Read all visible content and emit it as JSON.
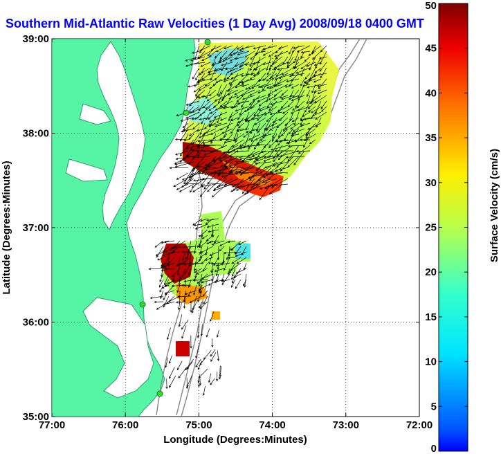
{
  "map": {
    "title": "Southern Mid-Atlantic Raw Velocities (1 Day Avg) 2008/09/18 0400 GMT",
    "xlabel": "Longitude (Degrees:Minutes)",
    "ylabel": "Latitude (Degrees:Minutes)",
    "x_ticks": [
      "77:00",
      "76:00",
      "75:00",
      "74:00",
      "73:00",
      "72:00"
    ],
    "y_ticks": [
      "39:00",
      "38:00",
      "37:00",
      "36:00",
      "35:00"
    ],
    "x_range_deg": [
      -77,
      -72
    ],
    "y_range_deg": [
      35,
      39
    ],
    "grid": "dotted",
    "land_color": "#55f5a5",
    "bathymetry_color": "#8c8c8c",
    "vector_color": "#000000",
    "station_color": "#33dd33"
  },
  "colorbar": {
    "label": "Surface Velocity (cm/s)",
    "ticks": [
      "0",
      "5",
      "10",
      "15",
      "20",
      "25",
      "30",
      "35",
      "40",
      "45",
      "50"
    ],
    "range": [
      0,
      50
    ],
    "colormap": "jet"
  }
}
